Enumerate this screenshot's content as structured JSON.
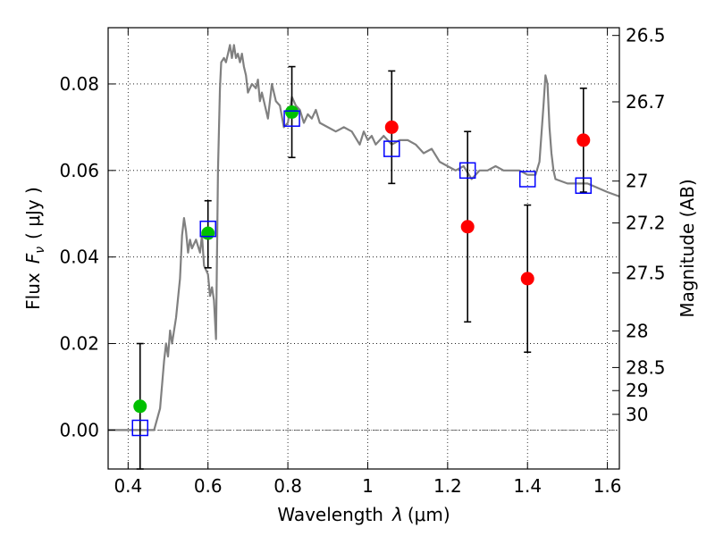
{
  "chart_data": {
    "type": "scatter",
    "xlabel_text": "Wavelength",
    "xlabel_symbol": "λ",
    "xlabel_unit": "(μm)",
    "ylabel_text": "Flux",
    "ylabel_symbol": "F",
    "ylabel_subscript": "ν",
    "ylabel_unit": "( μJy )",
    "y2label": "Magnitude (AB)",
    "xlim": [
      0.35,
      1.63
    ],
    "ylim": [
      -0.009,
      0.093
    ],
    "grid": true,
    "x_ticks": [
      {
        "value": 0.4,
        "label": "0.4"
      },
      {
        "value": 0.6,
        "label": "0.6"
      },
      {
        "value": 0.8,
        "label": "0.8"
      },
      {
        "value": 1.0,
        "label": "1"
      },
      {
        "value": 1.2,
        "label": "1.2"
      },
      {
        "value": 1.4,
        "label": "1.4"
      },
      {
        "value": 1.6,
        "label": "1.6"
      }
    ],
    "y_ticks": [
      {
        "value": 0.0,
        "label": "0.00"
      },
      {
        "value": 0.02,
        "label": "0.02"
      },
      {
        "value": 0.04,
        "label": "0.04"
      },
      {
        "value": 0.06,
        "label": "0.06"
      },
      {
        "value": 0.08,
        "label": "0.08"
      }
    ],
    "y2_ticks": [
      {
        "value": 26.5,
        "label": "26.5"
      },
      {
        "value": 26.7,
        "label": "26.7"
      },
      {
        "value": 27.0,
        "label": "27"
      },
      {
        "value": 27.2,
        "label": "27.2"
      },
      {
        "value": 27.5,
        "label": "27.5"
      },
      {
        "value": 28.0,
        "label": "28"
      },
      {
        "value": 28.5,
        "label": "28.5"
      },
      {
        "value": 29.0,
        "label": "29"
      },
      {
        "value": 30.0,
        "label": "30"
      }
    ],
    "model_spectrum": {
      "color": "#808080",
      "x": [
        0.35,
        0.43,
        0.45,
        0.465,
        0.48,
        0.49,
        0.495,
        0.5,
        0.505,
        0.51,
        0.52,
        0.53,
        0.535,
        0.54,
        0.545,
        0.55,
        0.555,
        0.56,
        0.57,
        0.58,
        0.585,
        0.59,
        0.595,
        0.6,
        0.605,
        0.61,
        0.615,
        0.62,
        0.625,
        0.63,
        0.633,
        0.64,
        0.645,
        0.65,
        0.655,
        0.66,
        0.665,
        0.67,
        0.675,
        0.68,
        0.685,
        0.69,
        0.695,
        0.7,
        0.71,
        0.72,
        0.725,
        0.73,
        0.735,
        0.74,
        0.75,
        0.76,
        0.77,
        0.78,
        0.79,
        0.8,
        0.81,
        0.82,
        0.83,
        0.84,
        0.85,
        0.86,
        0.87,
        0.88,
        0.9,
        0.92,
        0.94,
        0.96,
        0.98,
        0.99,
        1.0,
        1.01,
        1.02,
        1.04,
        1.06,
        1.08,
        1.1,
        1.12,
        1.14,
        1.16,
        1.18,
        1.2,
        1.22,
        1.24,
        1.26,
        1.28,
        1.3,
        1.32,
        1.34,
        1.36,
        1.38,
        1.4,
        1.42,
        1.43,
        1.44,
        1.445,
        1.45,
        1.455,
        1.46,
        1.465,
        1.47,
        1.5,
        1.55,
        1.6,
        1.63
      ],
      "y": [
        0.0,
        0.0,
        0.0,
        0.0,
        0.005,
        0.016,
        0.02,
        0.017,
        0.023,
        0.02,
        0.026,
        0.035,
        0.045,
        0.049,
        0.046,
        0.041,
        0.044,
        0.042,
        0.044,
        0.041,
        0.045,
        0.038,
        0.037,
        0.036,
        0.031,
        0.033,
        0.03,
        0.021,
        0.06,
        0.079,
        0.085,
        0.086,
        0.085,
        0.087,
        0.089,
        0.086,
        0.089,
        0.086,
        0.087,
        0.085,
        0.087,
        0.084,
        0.082,
        0.078,
        0.08,
        0.079,
        0.081,
        0.076,
        0.078,
        0.076,
        0.072,
        0.08,
        0.076,
        0.075,
        0.07,
        0.071,
        0.077,
        0.075,
        0.074,
        0.071,
        0.073,
        0.072,
        0.074,
        0.071,
        0.07,
        0.069,
        0.07,
        0.069,
        0.066,
        0.069,
        0.067,
        0.068,
        0.066,
        0.068,
        0.066,
        0.067,
        0.067,
        0.066,
        0.064,
        0.065,
        0.062,
        0.061,
        0.06,
        0.061,
        0.058,
        0.06,
        0.06,
        0.061,
        0.06,
        0.06,
        0.06,
        0.059,
        0.059,
        0.062,
        0.075,
        0.082,
        0.08,
        0.07,
        0.064,
        0.06,
        0.058,
        0.057,
        0.057,
        0.055,
        0.054
      ]
    },
    "series": [
      {
        "marker": "circle",
        "color": "#00c000",
        "x": [
          0.43,
          0.6,
          0.81
        ],
        "y": [
          0.0055,
          0.0455,
          0.0735
        ]
      },
      {
        "marker": "circle",
        "color": "#ff0000",
        "x": [
          1.06,
          1.25,
          1.4,
          1.54
        ],
        "y": [
          0.07,
          0.047,
          0.035,
          0.067
        ]
      },
      {
        "marker": "square",
        "color": "#0000ff",
        "x": [
          0.43,
          0.6,
          0.81,
          1.06,
          1.25,
          1.4,
          1.54
        ],
        "y": [
          0.0005,
          0.0465,
          0.072,
          0.065,
          0.06,
          0.058,
          0.0565
        ]
      }
    ],
    "error_bars": [
      {
        "x": 0.43,
        "low": -0.009,
        "high": 0.02
      },
      {
        "x": 0.6,
        "low": 0.0375,
        "high": 0.053
      },
      {
        "x": 0.81,
        "low": 0.063,
        "high": 0.084
      },
      {
        "x": 1.06,
        "low": 0.057,
        "high": 0.083
      },
      {
        "x": 1.25,
        "low": 0.025,
        "high": 0.069
      },
      {
        "x": 1.4,
        "low": 0.018,
        "high": 0.052
      },
      {
        "x": 1.54,
        "low": 0.055,
        "high": 0.079
      }
    ],
    "zero_line": true
  }
}
